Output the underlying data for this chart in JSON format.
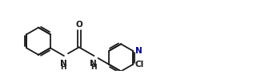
{
  "bg_color": "#ffffff",
  "bond_color": "#1a1a1a",
  "n_color": "#00008B",
  "cl_color": "#1a1a1a",
  "o_color": "#1a1a1a",
  "nh_color": "#1a1a1a",
  "figsize": [
    3.26,
    1.03
  ],
  "dpi": 100,
  "lw": 1.3,
  "r_ring": 0.38,
  "xlim": [
    0.0,
    7.2
  ],
  "ylim": [
    -0.55,
    1.1
  ]
}
